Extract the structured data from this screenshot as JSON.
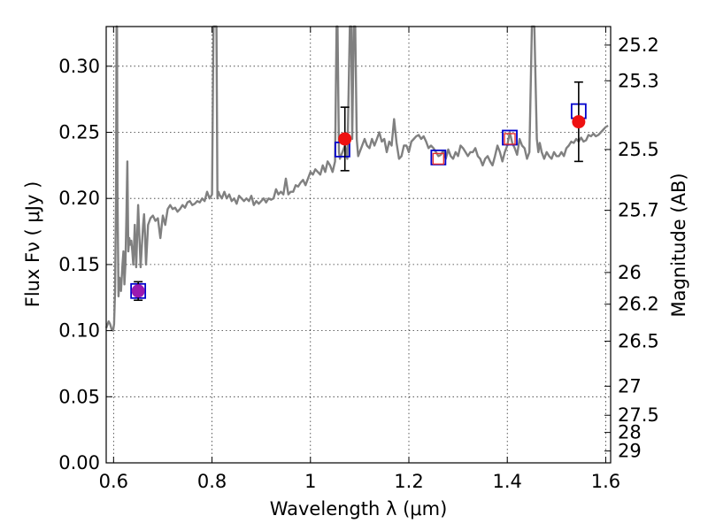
{
  "chart_data": {
    "type": "line",
    "xlabel": "Wavelength  λ (μm)",
    "ylabel": "Flux  Fν  ( μJy )",
    "ylabel_right": "Magnitude (AB)",
    "xlim": [
      0.585,
      1.61
    ],
    "ylim": [
      0.0,
      0.33
    ],
    "grid": true,
    "x_ticks": [
      {
        "value": 0.6,
        "label": "0.6"
      },
      {
        "value": 0.8,
        "label": "0.8"
      },
      {
        "value": 1.0,
        "label": "1"
      },
      {
        "value": 1.2,
        "label": "1.2"
      },
      {
        "value": 1.4,
        "label": "1.4"
      },
      {
        "value": 1.6,
        "label": "1.6"
      }
    ],
    "y_ticks": [
      {
        "value": 0.0,
        "label": "0.00"
      },
      {
        "value": 0.05,
        "label": "0.05"
      },
      {
        "value": 0.1,
        "label": "0.10"
      },
      {
        "value": 0.15,
        "label": "0.15"
      },
      {
        "value": 0.2,
        "label": "0.20"
      },
      {
        "value": 0.25,
        "label": "0.25"
      },
      {
        "value": 0.3,
        "label": "0.30"
      }
    ],
    "right_ticks": [
      {
        "flux": 0.316,
        "label": "25.2"
      },
      {
        "flux": 0.289,
        "label": "25.3"
      },
      {
        "flux": 0.237,
        "label": "25.5"
      },
      {
        "flux": 0.191,
        "label": "25.7"
      },
      {
        "flux": 0.144,
        "label": "26"
      },
      {
        "flux": 0.12,
        "label": "26.2"
      },
      {
        "flux": 0.092,
        "label": "26.5"
      },
      {
        "flux": 0.058,
        "label": "27"
      },
      {
        "flux": 0.036,
        "label": "27.5"
      },
      {
        "flux": 0.023,
        "label": "28"
      },
      {
        "flux": 0.009,
        "label": "29"
      }
    ],
    "spectrum": {
      "color": "#808080",
      "x": [
        0.585,
        0.59,
        0.593,
        0.596,
        0.599,
        0.601,
        0.603,
        0.605,
        0.606,
        0.607,
        0.608,
        0.61,
        0.612,
        0.615,
        0.618,
        0.62,
        0.622,
        0.624,
        0.626,
        0.628,
        0.63,
        0.632,
        0.634,
        0.636,
        0.638,
        0.64,
        0.643,
        0.646,
        0.65,
        0.655,
        0.66,
        0.662,
        0.664,
        0.666,
        0.67,
        0.675,
        0.68,
        0.685,
        0.69,
        0.695,
        0.7,
        0.705,
        0.71,
        0.715,
        0.72,
        0.725,
        0.73,
        0.735,
        0.74,
        0.745,
        0.75,
        0.755,
        0.76,
        0.765,
        0.77,
        0.775,
        0.78,
        0.785,
        0.79,
        0.795,
        0.8,
        0.803,
        0.805,
        0.807,
        0.809,
        0.811,
        0.813,
        0.815,
        0.82,
        0.825,
        0.83,
        0.835,
        0.84,
        0.845,
        0.85,
        0.855,
        0.86,
        0.865,
        0.87,
        0.875,
        0.88,
        0.885,
        0.89,
        0.895,
        0.9,
        0.905,
        0.91,
        0.915,
        0.92,
        0.925,
        0.93,
        0.935,
        0.94,
        0.945,
        0.95,
        0.955,
        0.96,
        0.965,
        0.97,
        0.975,
        0.98,
        0.985,
        0.99,
        0.995,
        1.0,
        1.005,
        1.01,
        1.015,
        1.02,
        1.025,
        1.03,
        1.035,
        1.04,
        1.045,
        1.05,
        1.053,
        1.055,
        1.058,
        1.06,
        1.065,
        1.07,
        1.075,
        1.08,
        1.083,
        1.085,
        1.088,
        1.091,
        1.094,
        1.097,
        1.1,
        1.105,
        1.11,
        1.115,
        1.12,
        1.125,
        1.13,
        1.135,
        1.14,
        1.145,
        1.15,
        1.155,
        1.16,
        1.165,
        1.17,
        1.175,
        1.18,
        1.185,
        1.19,
        1.195,
        1.2,
        1.205,
        1.21,
        1.215,
        1.22,
        1.225,
        1.23,
        1.235,
        1.24,
        1.245,
        1.25,
        1.255,
        1.26,
        1.265,
        1.27,
        1.275,
        1.28,
        1.285,
        1.29,
        1.295,
        1.3,
        1.305,
        1.31,
        1.315,
        1.32,
        1.325,
        1.33,
        1.335,
        1.34,
        1.345,
        1.35,
        1.355,
        1.36,
        1.365,
        1.37,
        1.375,
        1.38,
        1.385,
        1.39,
        1.395,
        1.4,
        1.405,
        1.41,
        1.415,
        1.42,
        1.425,
        1.43,
        1.435,
        1.44,
        1.445,
        1.45,
        1.455,
        1.46,
        1.463,
        1.466,
        1.47,
        1.475,
        1.48,
        1.485,
        1.49,
        1.495,
        1.5,
        1.505,
        1.51,
        1.515,
        1.52,
        1.525,
        1.53,
        1.535,
        1.54,
        1.545,
        1.55,
        1.555,
        1.56,
        1.565,
        1.57,
        1.575,
        1.58,
        1.585,
        1.59,
        1.595,
        1.6,
        1.605
      ],
      "y": [
        0.102,
        0.107,
        0.105,
        0.101,
        0.1,
        0.105,
        0.13,
        0.2,
        0.33,
        0.33,
        0.2,
        0.126,
        0.14,
        0.13,
        0.15,
        0.16,
        0.135,
        0.15,
        0.185,
        0.228,
        0.16,
        0.17,
        0.165,
        0.168,
        0.16,
        0.15,
        0.18,
        0.148,
        0.195,
        0.148,
        0.18,
        0.188,
        0.172,
        0.15,
        0.18,
        0.185,
        0.187,
        0.183,
        0.185,
        0.17,
        0.187,
        0.18,
        0.192,
        0.195,
        0.192,
        0.193,
        0.19,
        0.192,
        0.195,
        0.193,
        0.197,
        0.198,
        0.195,
        0.196,
        0.198,
        0.197,
        0.2,
        0.198,
        0.205,
        0.2,
        0.203,
        0.33,
        0.33,
        0.33,
        0.33,
        0.2,
        0.205,
        0.203,
        0.2,
        0.205,
        0.2,
        0.203,
        0.198,
        0.2,
        0.196,
        0.202,
        0.2,
        0.198,
        0.2,
        0.198,
        0.202,
        0.195,
        0.198,
        0.196,
        0.198,
        0.2,
        0.197,
        0.2,
        0.199,
        0.2,
        0.207,
        0.203,
        0.205,
        0.203,
        0.215,
        0.203,
        0.205,
        0.205,
        0.21,
        0.209,
        0.212,
        0.214,
        0.21,
        0.215,
        0.22,
        0.218,
        0.222,
        0.22,
        0.218,
        0.225,
        0.22,
        0.228,
        0.225,
        0.22,
        0.228,
        0.33,
        0.33,
        0.235,
        0.23,
        0.235,
        0.24,
        0.23,
        0.33,
        0.33,
        0.245,
        0.33,
        0.33,
        0.245,
        0.232,
        0.235,
        0.24,
        0.245,
        0.24,
        0.238,
        0.245,
        0.24,
        0.245,
        0.25,
        0.243,
        0.245,
        0.235,
        0.243,
        0.24,
        0.26,
        0.242,
        0.23,
        0.232,
        0.24,
        0.24,
        0.235,
        0.243,
        0.245,
        0.247,
        0.248,
        0.245,
        0.247,
        0.243,
        0.238,
        0.24,
        0.238,
        0.235,
        0.232,
        0.233,
        0.236,
        0.23,
        0.237,
        0.232,
        0.23,
        0.235,
        0.232,
        0.24,
        0.238,
        0.235,
        0.232,
        0.235,
        0.235,
        0.238,
        0.232,
        0.23,
        0.225,
        0.23,
        0.232,
        0.228,
        0.225,
        0.232,
        0.24,
        0.235,
        0.228,
        0.235,
        0.24,
        0.25,
        0.242,
        0.238,
        0.233,
        0.245,
        0.24,
        0.238,
        0.23,
        0.235,
        0.33,
        0.33,
        0.245,
        0.235,
        0.242,
        0.235,
        0.23,
        0.235,
        0.232,
        0.23,
        0.235,
        0.232,
        0.232,
        0.235,
        0.232,
        0.238,
        0.24,
        0.243,
        0.242,
        0.245,
        0.243,
        0.246,
        0.243,
        0.244,
        0.248,
        0.247,
        0.249,
        0.247,
        0.248,
        0.25,
        0.252,
        0.254,
        0.255
      ]
    },
    "box_points": {
      "name": "",
      "color": "#0000cc",
      "points": [
        {
          "x": 0.65,
          "y": 0.13
        },
        {
          "x": 1.065,
          "y": 0.237
        },
        {
          "x": 1.26,
          "y": 0.231
        },
        {
          "x": 1.405,
          "y": 0.246
        },
        {
          "x": 1.545,
          "y": 0.266
        }
      ]
    },
    "inner_box_points": {
      "color": "#e83030",
      "points": [
        {
          "x": 1.26,
          "y": 0.23
        },
        {
          "x": 1.405,
          "y": 0.245
        }
      ]
    },
    "circle_points": {
      "color": "#ee1111",
      "points": [
        {
          "x": 1.07,
          "y": 0.245,
          "yerr": 0.024
        },
        {
          "x": 1.545,
          "y": 0.258,
          "yerr": 0.03
        }
      ]
    },
    "purple_point": {
      "color": "#9a1ab0",
      "x": 0.65,
      "y": 0.13,
      "yerr": 0.007
    }
  }
}
